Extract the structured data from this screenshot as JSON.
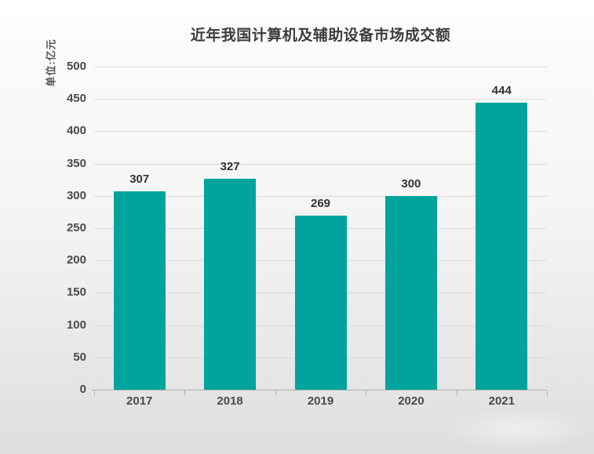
{
  "page": {
    "title": "近年我国计算机及辅助设备市场成交额",
    "unit_label": "单位:亿元"
  },
  "chart_data": {
    "type": "bar",
    "title": "近年我国计算机及辅助设备市场成交额",
    "ylabel": "单位:亿元",
    "xlabel": "",
    "categories": [
      "2017",
      "2018",
      "2019",
      "2020",
      "2021"
    ],
    "values": [
      307,
      327,
      269,
      300,
      444
    ],
    "ylim": [
      0,
      500
    ],
    "ytick_step": 50,
    "grid": "horizontal",
    "legend": "none",
    "bar_color": "#00a49d"
  }
}
